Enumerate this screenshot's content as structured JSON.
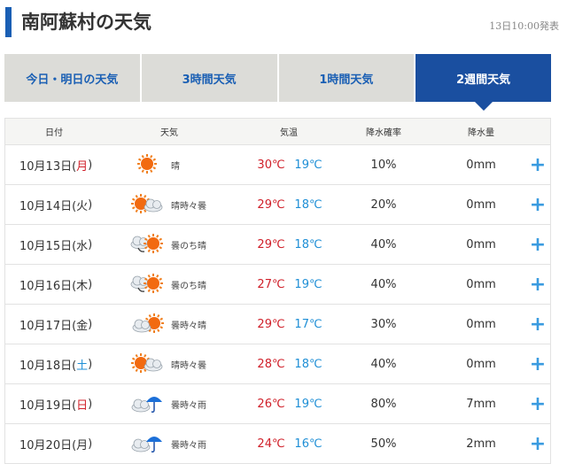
{
  "title": "南阿蘇村の天気",
  "published": "13日10:00発表",
  "tabs": [
    {
      "label": "今日・明日の天気"
    },
    {
      "label": "3時間天気"
    },
    {
      "label": "1時間天気"
    },
    {
      "label": "2週間天気",
      "active": true
    }
  ],
  "columns": {
    "date": "日付",
    "weather": "天気",
    "temp": "気温",
    "prob": "降水確率",
    "amount": "降水量"
  },
  "colors": {
    "accent": "#1a4fa0",
    "high": "#d0202a",
    "low": "#1f8fd6"
  },
  "rows": [
    {
      "date": "10月13日(",
      "dow": "月",
      "close": ")",
      "dowType": "holiday",
      "icon": "sun",
      "weather": "晴",
      "high": "30℃",
      "low": "19℃",
      "prob": "10%",
      "amount": "0mm"
    },
    {
      "date": "10月14日(",
      "dow": "火",
      "close": ")",
      "dowType": "",
      "icon": "sun-cloud",
      "weather": "晴時々曇",
      "high": "29℃",
      "low": "18℃",
      "prob": "20%",
      "amount": "0mm"
    },
    {
      "date": "10月15日(",
      "dow": "水",
      "close": ")",
      "dowType": "",
      "icon": "cloud-then-sun",
      "weather": "曇のち晴",
      "high": "29℃",
      "low": "18℃",
      "prob": "40%",
      "amount": "0mm"
    },
    {
      "date": "10月16日(",
      "dow": "木",
      "close": ")",
      "dowType": "",
      "icon": "cloud-then-sun",
      "weather": "曇のち晴",
      "high": "27℃",
      "low": "19℃",
      "prob": "40%",
      "amount": "0mm"
    },
    {
      "date": "10月17日(",
      "dow": "金",
      "close": ")",
      "dowType": "",
      "icon": "cloud-sun",
      "weather": "曇時々晴",
      "high": "29℃",
      "low": "17℃",
      "prob": "30%",
      "amount": "0mm"
    },
    {
      "date": "10月18日(",
      "dow": "土",
      "close": ")",
      "dowType": "sat",
      "icon": "sun-cloud",
      "weather": "晴時々曇",
      "high": "28℃",
      "low": "18℃",
      "prob": "40%",
      "amount": "0mm"
    },
    {
      "date": "10月19日(",
      "dow": "日",
      "close": ")",
      "dowType": "sun",
      "icon": "cloud-rain",
      "weather": "曇時々雨",
      "high": "26℃",
      "low": "19℃",
      "prob": "80%",
      "amount": "7mm"
    },
    {
      "date": "10月20日(",
      "dow": "月",
      "close": ")",
      "dowType": "",
      "icon": "cloud-rain",
      "weather": "曇時々雨",
      "high": "24℃",
      "low": "16℃",
      "prob": "50%",
      "amount": "2mm"
    }
  ],
  "expand_label": "+"
}
